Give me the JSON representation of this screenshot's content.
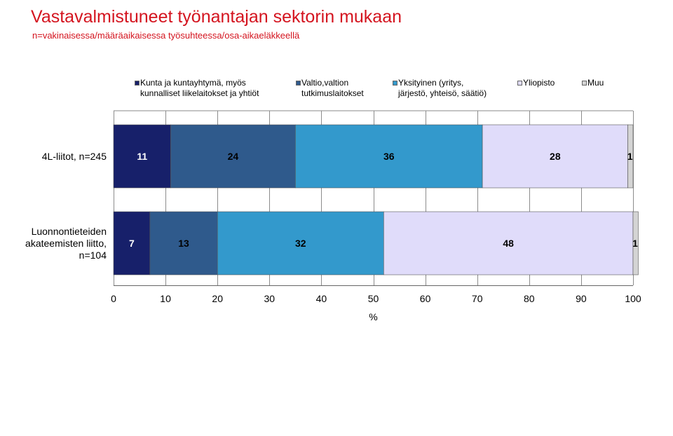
{
  "header": {
    "title": "Vastavalmistuneet työnantajan sektorin mukaan",
    "subtitle": "n=vakinaisessa/määräaikaisessa työsuhteessa/osa-aikaeläkkeellä"
  },
  "chart_data": {
    "type": "bar",
    "orientation": "horizontal",
    "stacked": true,
    "categories": [
      "4L-liitot, n=245",
      "Luonnontieteiden\nakateemisten liitto,\nn=104"
    ],
    "series": [
      {
        "name": "Kunta ja kuntayhtymä, myös\nkunnalliset liikelaitokset ja yhtiöt",
        "color": "#17206a",
        "values": [
          11,
          7
        ],
        "labels": [
          "11",
          "7"
        ]
      },
      {
        "name": "Valtio,valtion\ntutkimuslaitokset",
        "color": "#2f5a8c",
        "values": [
          24,
          13
        ],
        "labels": [
          "24",
          "13"
        ]
      },
      {
        "name": "Yksityinen (yritys,\njärjestö, yhteisö, säätiö)",
        "color": "#3399cc",
        "values": [
          36,
          32
        ],
        "labels": [
          "36",
          "32"
        ]
      },
      {
        "name": "Yliopisto",
        "color": "#e0dcfa",
        "values": [
          28,
          48
        ],
        "labels": [
          "28",
          "48"
        ]
      },
      {
        "name": "Muu",
        "color": "#d4d4d4",
        "values": [
          1,
          1
        ],
        "labels": [
          "1",
          "1"
        ]
      }
    ],
    "xlim": [
      0,
      100
    ],
    "xticks": [
      "0",
      "10",
      "20",
      "30",
      "40",
      "50",
      "60",
      "70",
      "80",
      "90",
      "100"
    ],
    "xlabel": "%",
    "grid": "vertical",
    "legend": "top"
  }
}
